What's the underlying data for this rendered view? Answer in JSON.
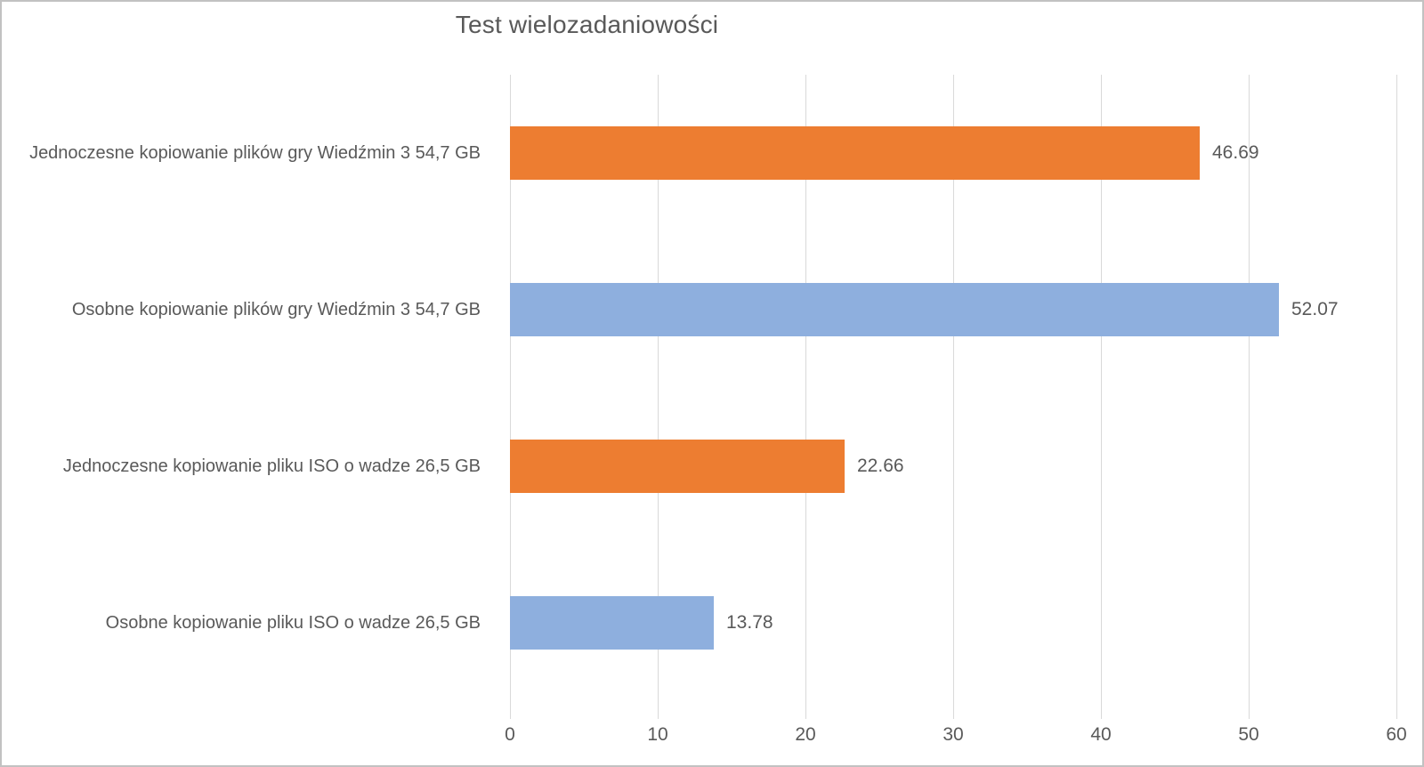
{
  "title": "Test wielozadaniowości",
  "colors": {
    "orange": "#ED7D31",
    "blue": "#8EAFDE",
    "text": "#595959",
    "gridline": "#D9D9D9",
    "frame_border": "#C2C2C2",
    "background": "#FFFFFF"
  },
  "chart_data": {
    "type": "bar",
    "orientation": "horizontal",
    "title": "Test wielozadaniowości",
    "categories": [
      "Jednoczesne kopiowanie plików gry Wiedźmin 3 54,7 GB",
      "Osobne kopiowanie plików gry Wiedźmin 3 54,7 GB",
      "Jednoczesne kopiowanie pliku ISO o wadze 26,5 GB",
      "Osobne kopiowanie pliku ISO o wadze 26,5 GB"
    ],
    "values": [
      46.69,
      52.07,
      22.66,
      13.78
    ],
    "value_labels": [
      "46.69",
      "52.07",
      "22.66",
      "13.78"
    ],
    "bar_colors": [
      "#ED7D31",
      "#8EAFDE",
      "#ED7D31",
      "#8EAFDE"
    ],
    "xlim": [
      0,
      60
    ],
    "x_ticks": [
      0,
      10,
      20,
      30,
      40,
      50,
      60
    ],
    "grid": true,
    "legend_position": "none",
    "data_labels": true
  }
}
